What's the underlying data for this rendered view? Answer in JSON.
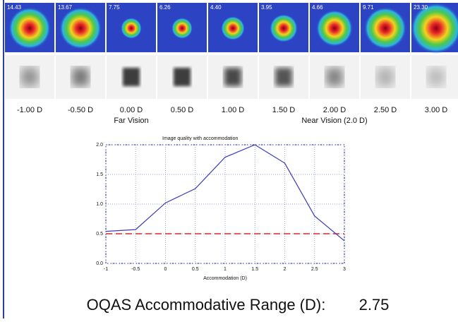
{
  "panels": {
    "scores": [
      "14.43",
      "13.67",
      "7.75",
      "6.26",
      "4.40",
      "3.95",
      "4.66",
      "9.71",
      "23.30"
    ],
    "labels": [
      "-1.00 D",
      "-0.50 D",
      "0.00 D",
      "0.50 D",
      "1.00 D",
      "1.50 D",
      "2.00 D",
      "2.50 D",
      "3.00 D"
    ],
    "far_label": "Far Vision",
    "near_label": "Near Vision (2.0 D)"
  },
  "chart_data": {
    "type": "line",
    "title": "Image quality with accommodation",
    "x_label": "Accommodation (D)",
    "x": [
      -1,
      -0.5,
      0,
      0.5,
      1,
      1.5,
      2,
      2.5,
      3
    ],
    "values": [
      0.54,
      0.57,
      1.02,
      1.26,
      1.79,
      2.0,
      1.69,
      0.8,
      0.38
    ],
    "color": "#3a3ab8",
    "threshold": 0.5,
    "threshold_color": "#d42a2a",
    "xlim": [
      -1,
      3
    ],
    "xticks": [
      -1,
      -0.5,
      0,
      0.5,
      1,
      1.5,
      2,
      2.5,
      3
    ],
    "ylim": [
      0,
      2
    ],
    "yticks": [
      {
        "value": 0,
        "label": "0.0"
      },
      {
        "value": 0.5,
        "label": "0.5"
      },
      {
        "value": 1,
        "label": "1.0"
      },
      {
        "value": 1.5,
        "label": "1.5"
      },
      {
        "value": 2,
        "label": "2.0"
      }
    ],
    "grid": true
  },
  "footer": {
    "label": "OQAS Accommodative Range (D):",
    "value": "2.75"
  }
}
